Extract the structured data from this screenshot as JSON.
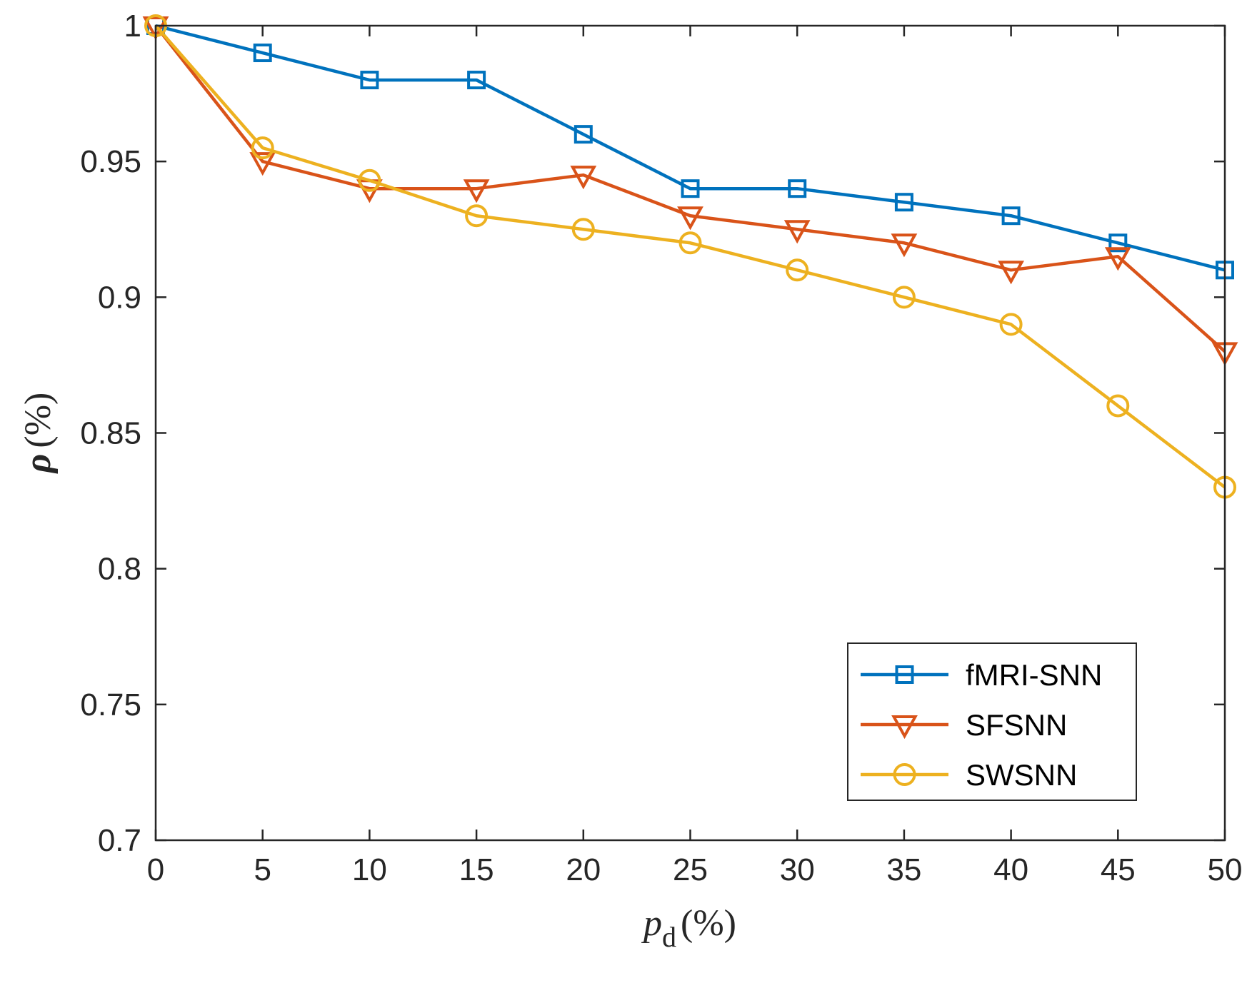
{
  "chart_data": {
    "type": "line",
    "x": [
      0,
      5,
      10,
      15,
      20,
      25,
      30,
      35,
      40,
      45,
      50
    ],
    "xticks": [
      0,
      5,
      10,
      15,
      20,
      25,
      30,
      35,
      40,
      45,
      50
    ],
    "yticks": [
      0.7,
      0.75,
      0.8,
      0.85,
      0.9,
      0.95,
      1
    ],
    "xlim": [
      0,
      50
    ],
    "ylim": [
      0.7,
      1.0
    ],
    "xlabel": {
      "main": "p",
      "sub": "d",
      "unit": "(%)"
    },
    "ylabel": {
      "main": "ρ",
      "unit": "(%)"
    },
    "grid": false,
    "legend_position": "bottom-right",
    "series": [
      {
        "name": "fMRI-SNN",
        "marker": "square",
        "color": "#0072BD",
        "values": [
          1.0,
          0.99,
          0.98,
          0.98,
          0.96,
          0.94,
          0.94,
          0.935,
          0.93,
          0.92,
          0.91
        ]
      },
      {
        "name": "SFSNN",
        "marker": "triangle-down",
        "color": "#D95319",
        "values": [
          1.0,
          0.95,
          0.94,
          0.94,
          0.945,
          0.93,
          0.925,
          0.92,
          0.91,
          0.915,
          0.88
        ]
      },
      {
        "name": "SWSNN",
        "marker": "circle",
        "color": "#EDB120",
        "values": [
          1.0,
          0.955,
          0.943,
          0.93,
          0.925,
          0.92,
          0.91,
          0.9,
          0.89,
          0.86,
          0.83
        ]
      }
    ]
  }
}
